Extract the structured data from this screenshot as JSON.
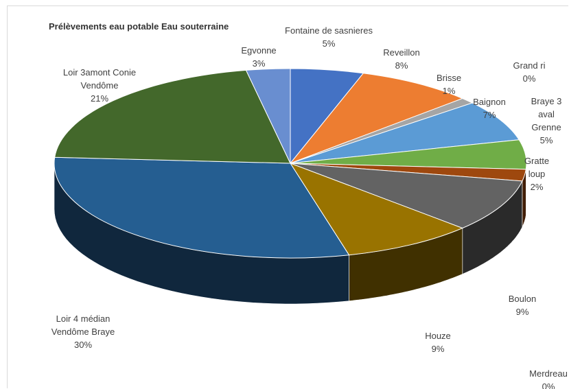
{
  "chart_data": {
    "type": "pie",
    "style": "3d",
    "title": "Prélèvements eau potable  Eau souterraine",
    "legend": "none",
    "slices": [
      {
        "label": "Fontaine de sasnieres",
        "value": 5,
        "display": "5%",
        "color": "#4472c4"
      },
      {
        "label": "Reveillon",
        "value": 8,
        "display": "8%",
        "color": "#ed7d31"
      },
      {
        "label": "Brisse",
        "value": 1,
        "display": "1%",
        "color": "#a5a5a5"
      },
      {
        "label": "Baignon",
        "value": 7,
        "display": "7%",
        "color": "#5b9bd5"
      },
      {
        "label": "Grand ri",
        "value": 0,
        "display": "0%",
        "color": "#ffc000"
      },
      {
        "label": "Braye 3 aval Grenne",
        "value": 5,
        "display": "5%",
        "color": "#70ad47"
      },
      {
        "label": "Gratte loup",
        "value": 2,
        "display": "2%",
        "color": "#9e480e"
      },
      {
        "label": "Boulon",
        "value": 9,
        "display": "9%",
        "color": "#636363"
      },
      {
        "label": "Merdreau",
        "value": 0,
        "display": "0%",
        "color": "#997300"
      },
      {
        "label": "Houze",
        "value": 9,
        "display": "9%",
        "color": "#997300"
      },
      {
        "label": "Loir 4 médian Vendôme Braye",
        "value": 30,
        "display": "30%",
        "color": "#255e91"
      },
      {
        "label": "Loir 3amont Conie Vendôme",
        "value": 21,
        "display": "21%",
        "color": "#43682b"
      },
      {
        "label": "Egvonne",
        "value": 3,
        "display": "3%",
        "color": "#698ed0"
      }
    ]
  }
}
